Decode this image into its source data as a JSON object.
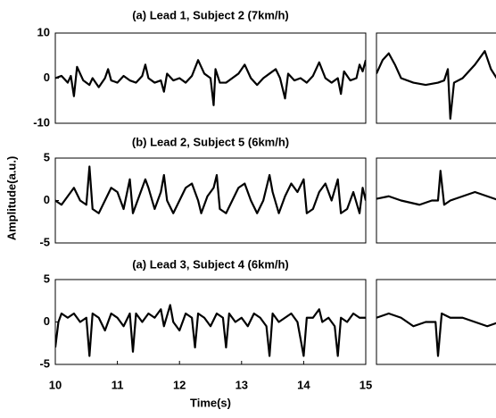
{
  "chart_data": [
    {
      "type": "line",
      "title": "(a) Lead 1, Subject 2 (7km/h)",
      "color": "#000000",
      "xlim": [
        10,
        15
      ],
      "ylim": [
        -10,
        10
      ],
      "yticks": [
        -10,
        0,
        10
      ],
      "x": [
        10.0,
        10.1,
        10.2,
        10.25,
        10.3,
        10.35,
        10.45,
        10.55,
        10.6,
        10.7,
        10.8,
        10.85,
        10.9,
        11.0,
        11.1,
        11.2,
        11.3,
        11.4,
        11.45,
        11.5,
        11.6,
        11.7,
        11.75,
        11.8,
        11.9,
        12.0,
        12.1,
        12.2,
        12.3,
        12.4,
        12.5,
        12.55,
        12.58,
        12.65,
        12.75,
        12.85,
        12.95,
        13.05,
        13.15,
        13.25,
        13.35,
        13.45,
        13.55,
        13.62,
        13.7,
        13.75,
        13.85,
        13.95,
        14.05,
        14.15,
        14.25,
        14.35,
        14.45,
        14.55,
        14.6,
        14.65,
        14.75,
        14.85,
        14.9,
        14.95,
        15.0
      ],
      "values": [
        0,
        0.5,
        -1,
        0.5,
        -4,
        2.5,
        -0.5,
        -1.5,
        0,
        -2,
        0,
        2,
        -0.5,
        -1,
        0.5,
        -0.5,
        -1,
        0.5,
        3,
        0,
        -1,
        -0.5,
        -3,
        1,
        -0.5,
        0,
        -1,
        0.5,
        4,
        1,
        0,
        -6,
        2,
        -1,
        -1,
        0,
        1,
        3,
        0,
        -1.5,
        0,
        1,
        2,
        0,
        -4.5,
        1,
        -0.5,
        0,
        -1,
        0.5,
        3.5,
        0,
        -1,
        0,
        -3.5,
        1.5,
        -0.5,
        0,
        3,
        1.5,
        4
      ]
    },
    {
      "type": "line",
      "title": "(b) Lead 2, Subject 5 (6km/h)",
      "ylabel": "Amplitude(a.u.)",
      "color": "#000000",
      "xlim": [
        10,
        15
      ],
      "ylim": [
        -5,
        5
      ],
      "yticks": [
        -5,
        0,
        5
      ],
      "x": [
        10.0,
        10.1,
        10.2,
        10.3,
        10.4,
        10.5,
        10.55,
        10.6,
        10.7,
        10.8,
        10.9,
        11.0,
        11.1,
        11.2,
        11.25,
        11.35,
        11.45,
        11.5,
        11.6,
        11.7,
        11.75,
        11.8,
        11.9,
        12.0,
        12.1,
        12.2,
        12.3,
        12.35,
        12.45,
        12.55,
        12.6,
        12.65,
        12.75,
        12.85,
        12.95,
        13.05,
        13.15,
        13.25,
        13.35,
        13.45,
        13.5,
        13.6,
        13.7,
        13.8,
        13.9,
        14.0,
        14.05,
        14.15,
        14.25,
        14.35,
        14.45,
        14.55,
        14.6,
        14.7,
        14.8,
        14.9,
        14.95,
        15.0
      ],
      "values": [
        0,
        -0.5,
        0.5,
        1.5,
        0,
        -0.5,
        4,
        -1,
        -1.5,
        0,
        1.5,
        1,
        -1,
        2.5,
        -1.5,
        0.5,
        2.5,
        1.5,
        -1,
        1,
        3,
        0,
        -1.5,
        0,
        1.5,
        2,
        0,
        -1.5,
        0.5,
        1.5,
        3,
        -1,
        -1.5,
        0,
        1.5,
        2,
        0,
        -1.5,
        0,
        3,
        1,
        -1.5,
        0.5,
        2,
        1,
        2.5,
        -1.5,
        -1,
        1,
        2,
        0,
        2.5,
        -1.5,
        -1,
        1,
        -1.5,
        1.5,
        0
      ]
    },
    {
      "type": "line",
      "title": "(a) Lead 3, Subject 4 (6km/h)",
      "xlabel": "Time(s)",
      "color": "#000000",
      "xlim": [
        10,
        15
      ],
      "ylim": [
        -5,
        5
      ],
      "yticks": [
        -5,
        0,
        5
      ],
      "xticks": [
        10,
        11,
        12,
        13,
        14,
        15
      ],
      "x": [
        10.0,
        10.05,
        10.1,
        10.2,
        10.3,
        10.4,
        10.5,
        10.55,
        10.6,
        10.7,
        10.8,
        10.9,
        11.0,
        11.1,
        11.2,
        11.25,
        11.3,
        11.4,
        11.5,
        11.6,
        11.7,
        11.75,
        11.85,
        11.9,
        12.0,
        12.1,
        12.2,
        12.25,
        12.3,
        12.4,
        12.5,
        12.6,
        12.7,
        12.75,
        12.8,
        12.9,
        13.0,
        13.1,
        13.2,
        13.3,
        13.4,
        13.45,
        13.5,
        13.6,
        13.7,
        13.8,
        13.9,
        14.0,
        14.05,
        14.15,
        14.25,
        14.3,
        14.4,
        14.5,
        14.55,
        14.6,
        14.7,
        14.8,
        14.9,
        15.0
      ],
      "values": [
        -3,
        0,
        1,
        0.5,
        1,
        0,
        0.5,
        -4,
        1,
        0.5,
        -1,
        1,
        0.5,
        -0.5,
        1,
        -3.5,
        1,
        0,
        1,
        0.5,
        1.5,
        -0.5,
        2,
        0,
        -1,
        1,
        0.5,
        -3,
        1,
        0.5,
        -0.5,
        1,
        0.5,
        -3,
        1,
        0,
        0.5,
        -0.5,
        1,
        0.5,
        -0.5,
        -4,
        1,
        0,
        0.5,
        1,
        0,
        -4,
        0.5,
        0.5,
        1.5,
        0,
        0.5,
        -0.5,
        -4,
        0.5,
        0,
        1,
        0.5,
        0.5
      ]
    },
    {
      "type": "line",
      "color": "#000000",
      "xlim": [
        0,
        1
      ],
      "ylim": [
        -10,
        10
      ],
      "x": [
        0,
        0.05,
        0.1,
        0.15,
        0.2,
        0.3,
        0.4,
        0.5,
        0.55,
        0.58,
        0.6,
        0.63,
        0.7,
        0.8,
        0.88,
        0.93,
        1.0
      ],
      "values": [
        1,
        4,
        5.5,
        3,
        0,
        -1,
        -1.5,
        -1,
        -0.5,
        2,
        -9,
        -1,
        0,
        3,
        6,
        2,
        -1
      ]
    },
    {
      "type": "line",
      "color": "#000000",
      "xlim": [
        0,
        1
      ],
      "ylim": [
        -5,
        5
      ],
      "x": [
        0,
        0.1,
        0.2,
        0.35,
        0.45,
        0.5,
        0.52,
        0.55,
        0.6,
        0.7,
        0.8,
        0.9,
        1.0
      ],
      "values": [
        0.2,
        0.5,
        0,
        -0.5,
        0,
        0,
        3.5,
        -0.5,
        0,
        0.5,
        1,
        0.5,
        0
      ]
    },
    {
      "type": "line",
      "color": "#000000",
      "xlim": [
        0,
        1
      ],
      "ylim": [
        -5,
        5
      ],
      "x": [
        0,
        0.1,
        0.2,
        0.3,
        0.4,
        0.48,
        0.5,
        0.53,
        0.6,
        0.7,
        0.8,
        0.9,
        1.0
      ],
      "values": [
        0.5,
        1,
        0.5,
        -0.5,
        0,
        0,
        -4,
        1,
        0.5,
        0.5,
        0,
        -0.5,
        0
      ]
    }
  ]
}
